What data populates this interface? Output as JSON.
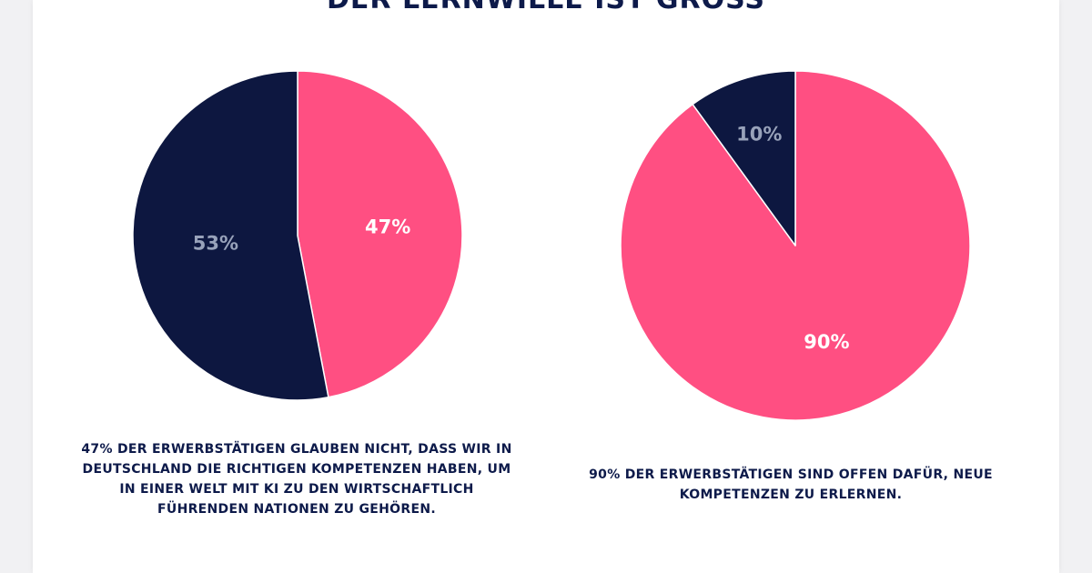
{
  "title": "DER LERNWILLE IST GROSS",
  "colors": {
    "navy": "#0d1740",
    "pink": "#ff4f82",
    "muted_label": "#98a2ba",
    "white_label": "#ffffff"
  },
  "chart_data": [
    {
      "type": "pie",
      "slices": [
        {
          "label": "47%",
          "value": 47,
          "color": "#ff4f82"
        },
        {
          "label": "53%",
          "value": 53,
          "color": "#0d1740"
        }
      ],
      "caption_lines": [
        "47% DER ERWERBSTÄTIGEN GLAUBEN NICHT, DASS WIR IN",
        "DEUTSCHLAND DIE RICHTIGEN KOMPETENZEN HABEN, UM",
        "IN EINER WELT MIT KI ZU DEN WIRTSCHAFTLICH",
        "FÜHRENDEN NATIONEN ZU GEHÖREN."
      ]
    },
    {
      "type": "pie",
      "slices": [
        {
          "label": "90%",
          "value": 90,
          "color": "#ff4f82"
        },
        {
          "label": "10%",
          "value": 10,
          "color": "#0d1740"
        }
      ],
      "caption_lines": [
        "90% DER ERWERBSTÄTIGEN SIND OFFEN DAFÜR, NEUE",
        "KOMPETENZEN ZU ERLERNEN."
      ]
    }
  ]
}
